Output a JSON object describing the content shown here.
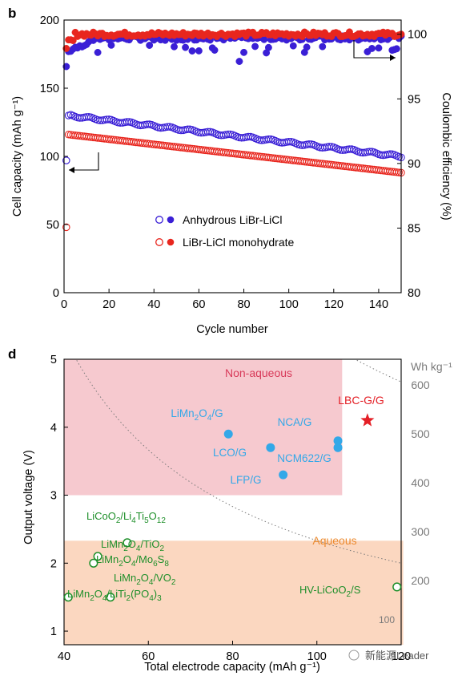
{
  "colors": {
    "anhydrous": "#3a1fd6",
    "monohydrate": "#e8261e",
    "non_aqueous_bg": "#f6c9cf",
    "aqueous_bg": "#fbd7c0",
    "non_aqueous_text": "#d83a5a",
    "aqueous_text": "#ec8a2f",
    "lbc": "#e41f26",
    "blue_points": "#33a8e8",
    "green_points": "#1e8f2a",
    "iso_lines": "#7a7a7a"
  },
  "watermark": "新能源Leader",
  "chart_data": [
    {
      "panel_label": "b",
      "type": "scatter",
      "xlabel": "Cycle number",
      "ylabel_left": "Cell capacity (mAh g⁻¹)",
      "ylabel_right": "Coulombic efficiency (%)",
      "xlim": [
        0,
        150
      ],
      "ylim_left": [
        0,
        200
      ],
      "ylim_right": [
        80,
        101.1
      ],
      "x_ticks": [
        "0",
        "20",
        "40",
        "60",
        "80",
        "100",
        "120",
        "140"
      ],
      "y_ticks_left": [
        "0",
        "50",
        "100",
        "150",
        "200"
      ],
      "y_ticks_right": [
        "80",
        "85",
        "90",
        "95",
        "100"
      ],
      "legend_position": "center",
      "series": [
        {
          "name": "Anhydrous LiBr-LiCl",
          "capacity_model": {
            "start": 130,
            "end": 100,
            "first_cycle": 97
          },
          "efficiency_model": {
            "base": 99.7,
            "first_cycle": 97.5
          }
        },
        {
          "name": "LiBr-LiCl monohydrate",
          "capacity_model": {
            "start": 116,
            "end": 88,
            "first_cycle": 48
          },
          "efficiency_model": {
            "base": 100.0,
            "first_cycle": 98.9
          }
        }
      ]
    },
    {
      "panel_label": "d",
      "type": "scatter",
      "xlabel": "Total electrode capacity (mAh g⁻¹)",
      "ylabel": "Output voltage (V)",
      "iso_energy_unit": "Wh kg⁻¹",
      "xlim": [
        40,
        120
      ],
      "ylim": [
        0.8,
        5
      ],
      "x_ticks": [
        "40",
        "60",
        "80",
        "100",
        "120"
      ],
      "y_ticks": [
        "1",
        "2",
        "3",
        "4",
        "5"
      ],
      "iso_energy_values": [
        100,
        200,
        300,
        400,
        500,
        600
      ],
      "regions": [
        {
          "name": "Non-aqueous",
          "x": [
            40,
            106
          ],
          "y": [
            3.0,
            5.0
          ]
        },
        {
          "name": "Aqueous",
          "x": [
            40,
            120.5
          ],
          "y": [
            0.8,
            2.33
          ]
        }
      ],
      "highlight": {
        "name": "LBC-G/G",
        "x": 112,
        "y": 4.1
      },
      "points_non_aqueous": [
        {
          "name": "LiMn2O4/G",
          "x": 79,
          "y": 3.9
        },
        {
          "name": "LCO/G",
          "x": 89,
          "y": 3.7
        },
        {
          "name": "LFP/G",
          "x": 92,
          "y": 3.3
        },
        {
          "name": "NCA/G",
          "x": 105,
          "y": 3.8
        },
        {
          "name": "NCM622/G",
          "x": 105,
          "y": 3.7
        }
      ],
      "points_aqueous": [
        {
          "name": "LiCoO2/Li4Ti5O12",
          "x": 55,
          "y": 2.3
        },
        {
          "name": "LiMn2O4/TiO2",
          "x": 48,
          "y": 2.1
        },
        {
          "name": "LiMn2O4/Mo6S8",
          "x": 47,
          "y": 2.0
        },
        {
          "name": "LiMn2O4/VO2",
          "x": 51,
          "y": 1.5
        },
        {
          "name": "LiMn2O4/LiTi2(PO4)3",
          "x": 41,
          "y": 1.5
        },
        {
          "name": "HV-LiCoO2/S",
          "x": 119,
          "y": 1.65
        }
      ]
    }
  ]
}
